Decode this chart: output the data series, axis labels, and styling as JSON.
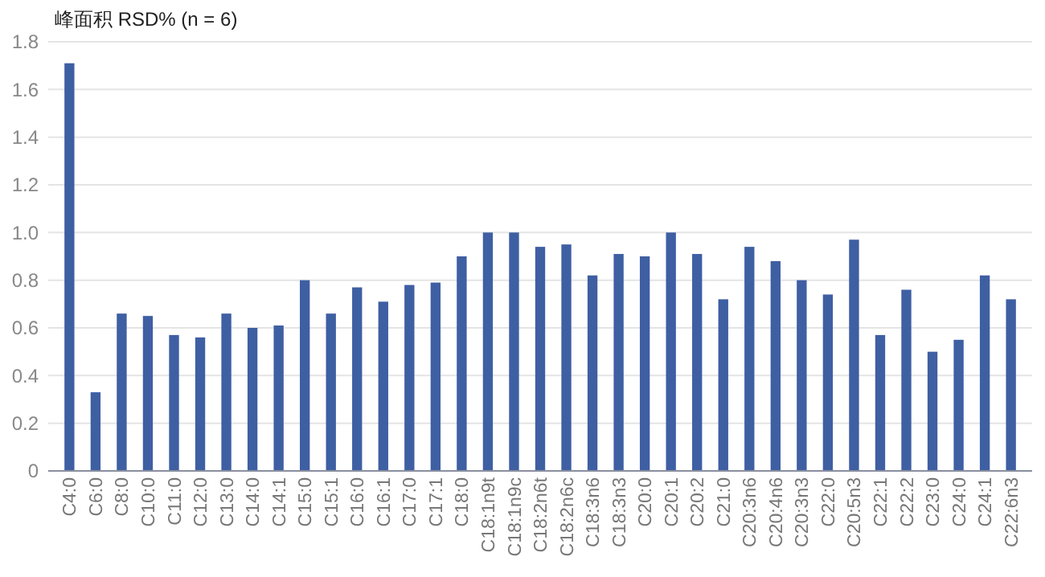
{
  "chart_data": {
    "type": "bar",
    "title": "峰面积 RSD% (n = 6)",
    "categories": [
      "C4:0",
      "C6:0",
      "C8:0",
      "C10:0",
      "C11:0",
      "C12:0",
      "C13:0",
      "C14:0",
      "C14:1",
      "C15:0",
      "C15:1",
      "C16:0",
      "C16:1",
      "C17:0",
      "C17:1",
      "C18:0",
      "C18:1n9t",
      "C18:1n9c",
      "C18:2n6t",
      "C18:2n6c",
      "C18:3n6",
      "C18:3n3",
      "C20:0",
      "C20:1",
      "C20:2",
      "C21:0",
      "C20:3n6",
      "C20:4n6",
      "C20:3n3",
      "C22:0",
      "C20:5n3",
      "C22:1",
      "C22:2",
      "C23:0",
      "C24:0",
      "C24:1",
      "C22:6n3"
    ],
    "values": [
      1.71,
      0.33,
      0.66,
      0.65,
      0.57,
      0.56,
      0.66,
      0.6,
      0.61,
      0.8,
      0.66,
      0.77,
      0.71,
      0.78,
      0.79,
      0.9,
      1.0,
      1.0,
      0.94,
      0.95,
      0.82,
      0.91,
      0.9,
      1.0,
      0.91,
      0.72,
      0.94,
      0.88,
      0.8,
      0.74,
      0.97,
      0.57,
      0.76,
      0.5,
      0.55,
      0.82,
      0.72
    ],
    "color": "#3f5fa3",
    "ylim": [
      0,
      1.8
    ],
    "yticks": [
      0,
      0.2,
      0.4,
      0.6,
      0.8,
      {
        "value": 1,
        "label": "1.0"
      },
      1.2,
      1.4,
      1.6,
      1.8
    ],
    "grid": "y"
  }
}
